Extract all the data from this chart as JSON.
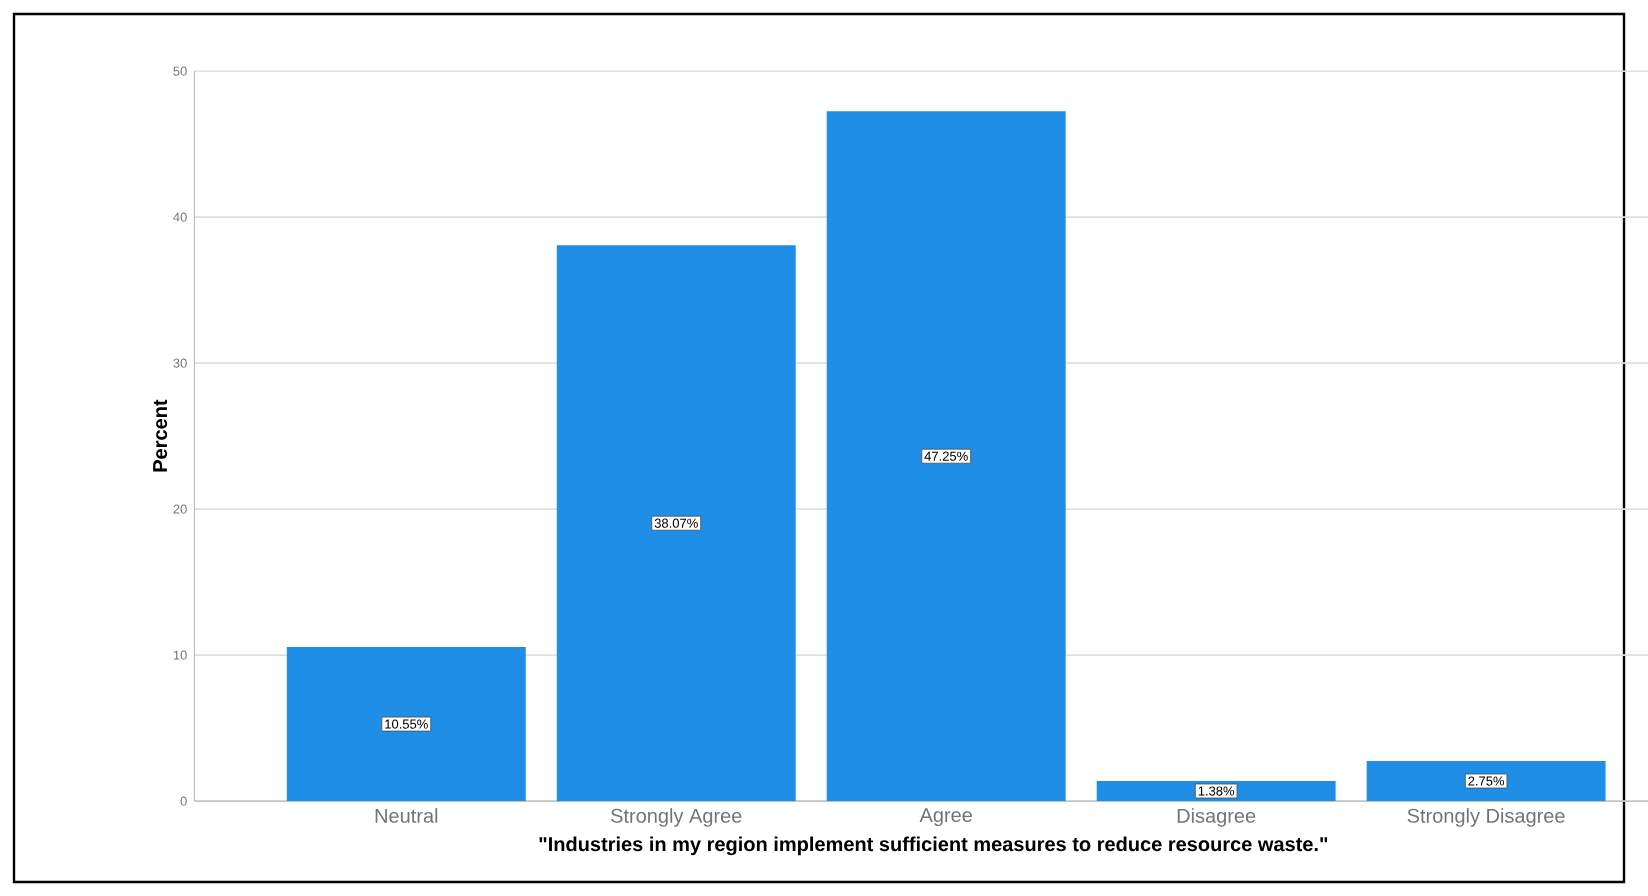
{
  "chart_data": {
    "type": "bar",
    "xlabel": "\"Industries in my region implement sufficient measures to reduce resource waste.\"",
    "ylabel": "Percent",
    "categories": [
      "Neutral",
      "Strongly Agree",
      "Agree",
      "Disagree",
      "Strongly Disagree"
    ],
    "values": [
      10.55,
      38.07,
      47.25,
      1.38,
      2.75
    ],
    "value_labels": [
      "10.55%",
      "38.07%",
      "47.25%",
      "1.38%",
      "2.75%"
    ],
    "color": "#1e8ee6",
    "ylim": [
      0,
      50
    ],
    "yticks": [
      0,
      10,
      20,
      30,
      40,
      50
    ],
    "grid": "y"
  }
}
